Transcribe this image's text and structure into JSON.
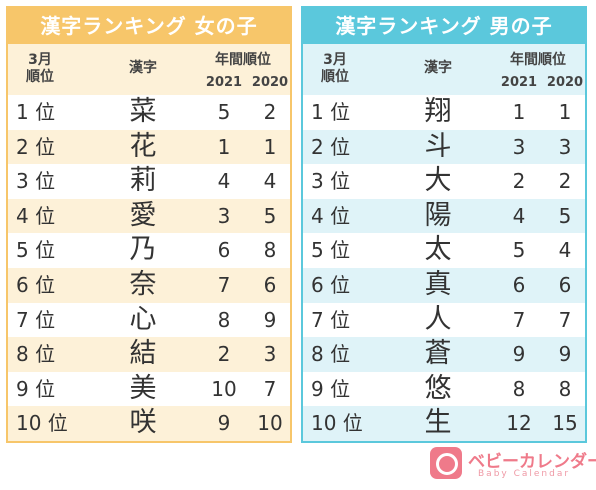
{
  "girls": {
    "title": "漢字ランキング 女の子",
    "header": {
      "rank_line1": "3月",
      "rank_line2": "順位",
      "kanji": "漢字",
      "trend": "年間順位",
      "year1": "2021",
      "year2": "2020"
    },
    "rows": [
      {
        "rank": "1 位",
        "kanji": "菜",
        "y2021": "5",
        "y2020": "2"
      },
      {
        "rank": "2 位",
        "kanji": "花",
        "y2021": "1",
        "y2020": "1"
      },
      {
        "rank": "3 位",
        "kanji": "莉",
        "y2021": "4",
        "y2020": "4"
      },
      {
        "rank": "4 位",
        "kanji": "愛",
        "y2021": "3",
        "y2020": "5"
      },
      {
        "rank": "5 位",
        "kanji": "乃",
        "y2021": "6",
        "y2020": "8"
      },
      {
        "rank": "6 位",
        "kanji": "奈",
        "y2021": "7",
        "y2020": "6"
      },
      {
        "rank": "7 位",
        "kanji": "心",
        "y2021": "8",
        "y2020": "9"
      },
      {
        "rank": "8 位",
        "kanji": "結",
        "y2021": "2",
        "y2020": "3"
      },
      {
        "rank": "9 位",
        "kanji": "美",
        "y2021": "10",
        "y2020": "7"
      },
      {
        "rank": "10 位",
        "kanji": "咲",
        "y2021": "9",
        "y2020": "10"
      }
    ]
  },
  "boys": {
    "title": "漢字ランキング 男の子",
    "header": {
      "rank_line1": "3月",
      "rank_line2": "順位",
      "kanji": "漢字",
      "trend": "年間順位",
      "year1": "2021",
      "year2": "2020"
    },
    "rows": [
      {
        "rank": "1 位",
        "kanji": "翔",
        "y2021": "1",
        "y2020": "1"
      },
      {
        "rank": "2 位",
        "kanji": "斗",
        "y2021": "3",
        "y2020": "3"
      },
      {
        "rank": "3 位",
        "kanji": "大",
        "y2021": "2",
        "y2020": "2"
      },
      {
        "rank": "4 位",
        "kanji": "陽",
        "y2021": "4",
        "y2020": "5"
      },
      {
        "rank": "5 位",
        "kanji": "太",
        "y2021": "5",
        "y2020": "4"
      },
      {
        "rank": "6 位",
        "kanji": "真",
        "y2021": "6",
        "y2020": "6"
      },
      {
        "rank": "7 位",
        "kanji": "人",
        "y2021": "7",
        "y2020": "7"
      },
      {
        "rank": "8 位",
        "kanji": "蒼",
        "y2021": "9",
        "y2020": "9"
      },
      {
        "rank": "9 位",
        "kanji": "悠",
        "y2021": "8",
        "y2020": "8"
      },
      {
        "rank": "10 位",
        "kanji": "生",
        "y2021": "12",
        "y2020": "15"
      }
    ]
  },
  "logo": {
    "text": "ベビーカレンダー",
    "sub": "Baby Calendar",
    "icon": "baby-calendar-logo-icon"
  },
  "colors": {
    "girls_accent": "#f7c66a",
    "boys_accent": "#5bc8dc",
    "logo": "#ef7a8a"
  }
}
